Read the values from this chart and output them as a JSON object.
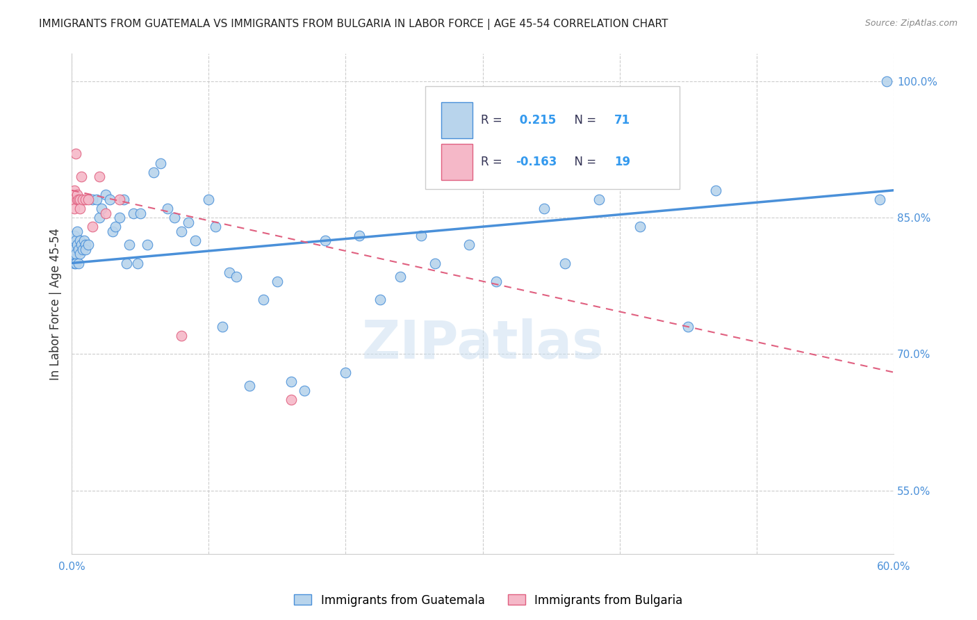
{
  "title": "IMMIGRANTS FROM GUATEMALA VS IMMIGRANTS FROM BULGARIA IN LABOR FORCE | AGE 45-54 CORRELATION CHART",
  "source": "Source: ZipAtlas.com",
  "ylabel": "In Labor Force | Age 45-54",
  "xlim": [
    0.0,
    0.6
  ],
  "ylim": [
    0.48,
    1.03
  ],
  "xticks": [
    0.0,
    0.1,
    0.2,
    0.3,
    0.4,
    0.5,
    0.6
  ],
  "xticklabels": [
    "0.0%",
    "",
    "",
    "",
    "",
    "",
    "60.0%"
  ],
  "yticks_right": [
    0.55,
    0.7,
    0.85,
    1.0
  ],
  "ytick_right_labels": [
    "55.0%",
    "70.0%",
    "85.0%",
    "100.0%"
  ],
  "guatemala_R": 0.215,
  "guatemala_N": 71,
  "bulgaria_R": -0.163,
  "bulgaria_N": 19,
  "guatemala_color": "#b8d4ec",
  "bulgaria_color": "#f5b8c8",
  "guatemala_line_color": "#4a90d9",
  "bulgaria_line_color": "#e06080",
  "watermark": "ZIPatlas",
  "legend_guatemala_label": "Immigrants from Guatemala",
  "legend_bulgaria_label": "Immigrants from Bulgaria",
  "guatemala_x": [
    0.001,
    0.001,
    0.002,
    0.002,
    0.002,
    0.003,
    0.003,
    0.003,
    0.004,
    0.004,
    0.005,
    0.005,
    0.006,
    0.006,
    0.007,
    0.008,
    0.009,
    0.01,
    0.01,
    0.012,
    0.015,
    0.018,
    0.02,
    0.022,
    0.025,
    0.028,
    0.03,
    0.032,
    0.035,
    0.038,
    0.04,
    0.042,
    0.045,
    0.048,
    0.05,
    0.055,
    0.06,
    0.065,
    0.07,
    0.075,
    0.08,
    0.085,
    0.09,
    0.1,
    0.105,
    0.11,
    0.115,
    0.12,
    0.13,
    0.14,
    0.15,
    0.16,
    0.17,
    0.185,
    0.2,
    0.21,
    0.225,
    0.24,
    0.255,
    0.265,
    0.29,
    0.31,
    0.345,
    0.36,
    0.385,
    0.415,
    0.43,
    0.45,
    0.47,
    0.59,
    0.595
  ],
  "guatemala_y": [
    0.82,
    0.81,
    0.83,
    0.815,
    0.8,
    0.825,
    0.81,
    0.8,
    0.835,
    0.82,
    0.815,
    0.8,
    0.825,
    0.81,
    0.82,
    0.815,
    0.825,
    0.82,
    0.815,
    0.82,
    0.87,
    0.87,
    0.85,
    0.86,
    0.875,
    0.87,
    0.835,
    0.84,
    0.85,
    0.87,
    0.8,
    0.82,
    0.855,
    0.8,
    0.855,
    0.82,
    0.9,
    0.91,
    0.86,
    0.85,
    0.835,
    0.845,
    0.825,
    0.87,
    0.84,
    0.73,
    0.79,
    0.785,
    0.665,
    0.76,
    0.78,
    0.67,
    0.66,
    0.825,
    0.68,
    0.83,
    0.76,
    0.785,
    0.83,
    0.8,
    0.82,
    0.78,
    0.86,
    0.8,
    0.87,
    0.84,
    0.89,
    0.73,
    0.88,
    0.87,
    1.0
  ],
  "bulgaria_x": [
    0.001,
    0.002,
    0.002,
    0.003,
    0.004,
    0.004,
    0.005,
    0.006,
    0.006,
    0.007,
    0.008,
    0.01,
    0.012,
    0.015,
    0.02,
    0.025,
    0.035,
    0.08,
    0.16
  ],
  "bulgaria_y": [
    0.87,
    0.88,
    0.86,
    0.92,
    0.87,
    0.875,
    0.87,
    0.87,
    0.86,
    0.895,
    0.87,
    0.87,
    0.87,
    0.84,
    0.895,
    0.855,
    0.87,
    0.72,
    0.65
  ],
  "guatemala_line_x0": 0.0,
  "guatemala_line_x1": 0.6,
  "guatemala_line_y0": 0.8,
  "guatemala_line_y1": 0.88,
  "bulgaria_line_x0": 0.0,
  "bulgaria_line_x1": 0.6,
  "bulgaria_line_y0": 0.88,
  "bulgaria_line_y1": 0.68
}
